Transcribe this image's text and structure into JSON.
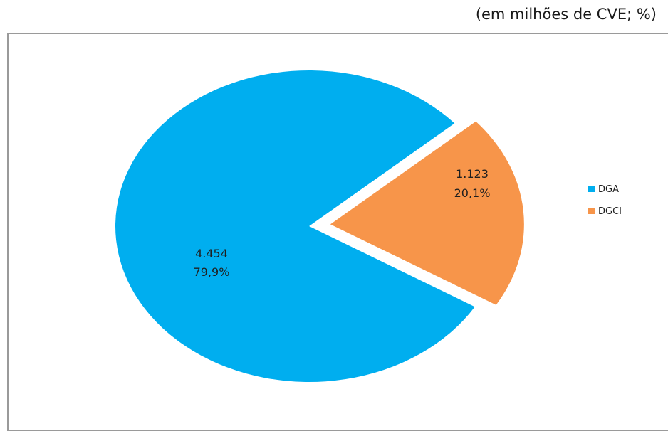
{
  "unit_note": "(em milhões de CVE; %)",
  "colors": {
    "DGA": "#00AEEF",
    "DGCI": "#F7954A"
  },
  "chart_data": {
    "type": "pie",
    "title": "",
    "slices": [
      {
        "name": "DGA",
        "value": 4454,
        "value_label": "4.454",
        "percent_label": "79,9%",
        "color": "#00AEEF"
      },
      {
        "name": "DGCI",
        "value": 1123,
        "value_label": "1.123",
        "percent_label": "20,1%",
        "color": "#F7954A",
        "exploded": true
      }
    ],
    "legend": {
      "position": "right",
      "items": [
        "DGA",
        "DGCI"
      ]
    }
  }
}
